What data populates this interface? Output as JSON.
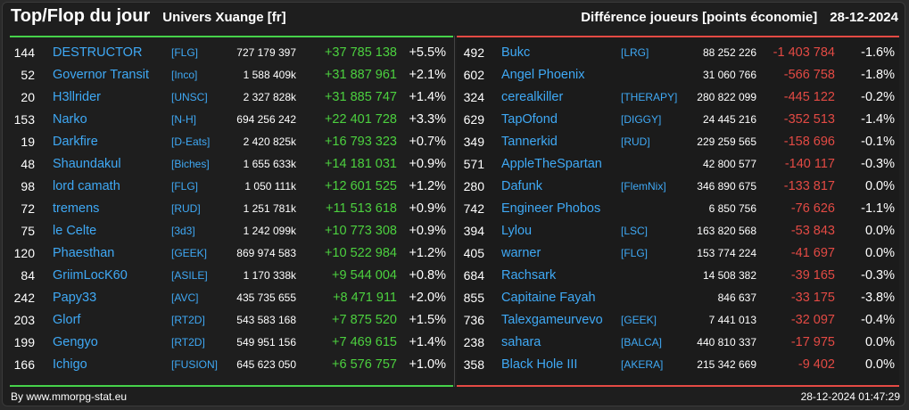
{
  "header": {
    "title": "Top/Flop du jour",
    "subtitle": "Univers Xuange [fr]",
    "metric": "Différence joueurs [points économie]",
    "date": "28-12-2024"
  },
  "colors": {
    "top": "#46d24a",
    "flop": "#e44a44",
    "name": "#3fa9f5"
  },
  "top": [
    {
      "rank": "144",
      "name": "DESTRUCTOR",
      "guild": "[FLG]",
      "total": "727 179 397",
      "diff": "+37 785 138",
      "pct": "+5.5%"
    },
    {
      "rank": "52",
      "name": "Governor Transit",
      "guild": "[Inco]",
      "total": "1 588 409k",
      "diff": "+31 887 961",
      "pct": "+2.1%"
    },
    {
      "rank": "20",
      "name": "H3llrider",
      "guild": "[UNSC]",
      "total": "2 327 828k",
      "diff": "+31 885 747",
      "pct": "+1.4%"
    },
    {
      "rank": "153",
      "name": "Narko",
      "guild": "[N-H]",
      "total": "694 256 242",
      "diff": "+22 401 728",
      "pct": "+3.3%"
    },
    {
      "rank": "19",
      "name": "Darkfire",
      "guild": "[D-Eats]",
      "total": "2 420 825k",
      "diff": "+16 793 323",
      "pct": "+0.7%"
    },
    {
      "rank": "48",
      "name": "Shaundakul",
      "guild": "[Biches]",
      "total": "1 655 633k",
      "diff": "+14 181 031",
      "pct": "+0.9%"
    },
    {
      "rank": "98",
      "name": "lord camath",
      "guild": "[FLG]",
      "total": "1 050 111k",
      "diff": "+12 601 525",
      "pct": "+1.2%"
    },
    {
      "rank": "72",
      "name": "tremens",
      "guild": "[RUD]",
      "total": "1 251 781k",
      "diff": "+11 513 618",
      "pct": "+0.9%"
    },
    {
      "rank": "75",
      "name": "le Celte",
      "guild": "[3d3]",
      "total": "1 242 099k",
      "diff": "+10 773 308",
      "pct": "+0.9%"
    },
    {
      "rank": "120",
      "name": "Phaesthan",
      "guild": "[GEEK]",
      "total": "869 974 583",
      "diff": "+10 522 984",
      "pct": "+1.2%"
    },
    {
      "rank": "84",
      "name": "GriimLocK60",
      "guild": "[ASILE]",
      "total": "1 170 338k",
      "diff": "+9 544 004",
      "pct": "+0.8%"
    },
    {
      "rank": "242",
      "name": "Papy33",
      "guild": "[AVC]",
      "total": "435 735 655",
      "diff": "+8 471 911",
      "pct": "+2.0%"
    },
    {
      "rank": "203",
      "name": "Glorf",
      "guild": "[RT2D]",
      "total": "543 583 168",
      "diff": "+7 875 520",
      "pct": "+1.5%"
    },
    {
      "rank": "199",
      "name": "Gengyo",
      "guild": "[RT2D]",
      "total": "549 951 156",
      "diff": "+7 469 615",
      "pct": "+1.4%"
    },
    {
      "rank": "166",
      "name": "Ichigo",
      "guild": "[FUSION]",
      "total": "645 623 050",
      "diff": "+6 576 757",
      "pct": "+1.0%"
    }
  ],
  "flop": [
    {
      "rank": "492",
      "name": "Bukc",
      "guild": "[LRG]",
      "total": "88 252 226",
      "diff": "-1 403 784",
      "pct": "-1.6%"
    },
    {
      "rank": "602",
      "name": "Angel Phoenix",
      "guild": "",
      "total": "31 060 766",
      "diff": "-566 758",
      "pct": "-1.8%"
    },
    {
      "rank": "324",
      "name": "cerealkiller",
      "guild": "[THERAPY]",
      "total": "280 822 099",
      "diff": "-445 122",
      "pct": "-0.2%"
    },
    {
      "rank": "629",
      "name": "TapOfond",
      "guild": "[DIGGY]",
      "total": "24 445 216",
      "diff": "-352 513",
      "pct": "-1.4%"
    },
    {
      "rank": "349",
      "name": "Tannerkid",
      "guild": "[RUD]",
      "total": "229 259 565",
      "diff": "-158 696",
      "pct": "-0.1%"
    },
    {
      "rank": "571",
      "name": "AppleTheSpartan",
      "guild": "",
      "total": "42 800 577",
      "diff": "-140 117",
      "pct": "-0.3%"
    },
    {
      "rank": "280",
      "name": "Dafunk",
      "guild": "[FlemNix]",
      "total": "346 890 675",
      "diff": "-133 817",
      "pct": "0.0%"
    },
    {
      "rank": "742",
      "name": "Engineer Phobos",
      "guild": "",
      "total": "6 850 756",
      "diff": "-76 626",
      "pct": "-1.1%"
    },
    {
      "rank": "394",
      "name": "Lylou",
      "guild": "[LSC]",
      "total": "163 820 568",
      "diff": "-53 843",
      "pct": "0.0%"
    },
    {
      "rank": "405",
      "name": "warner",
      "guild": "[FLG]",
      "total": "153 774 224",
      "diff": "-41 697",
      "pct": "0.0%"
    },
    {
      "rank": "684",
      "name": "Rachsark",
      "guild": "",
      "total": "14 508 382",
      "diff": "-39 165",
      "pct": "-0.3%"
    },
    {
      "rank": "855",
      "name": "Capitaine Fayah",
      "guild": "",
      "total": "846 637",
      "diff": "-33 175",
      "pct": "-3.8%"
    },
    {
      "rank": "736",
      "name": "Talexgameurvevo",
      "guild": "[GEEK]",
      "total": "7 441 013",
      "diff": "-32 097",
      "pct": "-0.4%"
    },
    {
      "rank": "238",
      "name": "sahara",
      "guild": "[BALCA]",
      "total": "440 810 337",
      "diff": "-17 975",
      "pct": "0.0%"
    },
    {
      "rank": "358",
      "name": "Black Hole III",
      "guild": "[AKERA]",
      "total": "215 342 669",
      "diff": "-9 402",
      "pct": "0.0%"
    }
  ],
  "footer": {
    "source": "By www.mmorpg-stat.eu",
    "timestamp": "28-12-2024 01:47:29"
  }
}
